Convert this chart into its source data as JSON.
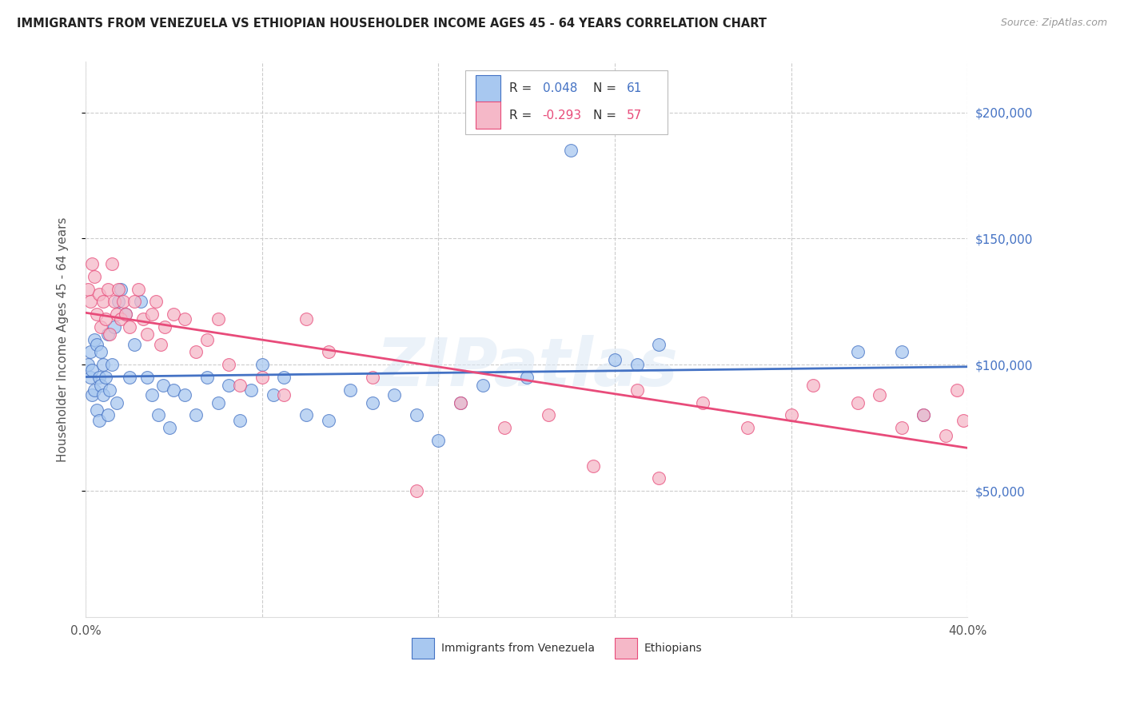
{
  "title": "IMMIGRANTS FROM VENEZUELA VS ETHIOPIAN HOUSEHOLDER INCOME AGES 45 - 64 YEARS CORRELATION CHART",
  "source": "Source: ZipAtlas.com",
  "ylabel": "Householder Income Ages 45 - 64 years",
  "xlim": [
    0.0,
    0.4
  ],
  "ylim": [
    0,
    220000
  ],
  "ytick_vals": [
    50000,
    100000,
    150000,
    200000
  ],
  "ytick_labels": [
    "$50,000",
    "$100,000",
    "$150,000",
    "$200,000"
  ],
  "xtick_vals": [
    0.0,
    0.08,
    0.16,
    0.24,
    0.32,
    0.4
  ],
  "xtick_labels": [
    "0.0%",
    "",
    "",
    "",
    "",
    "40.0%"
  ],
  "color_venezuela": "#a8c8f0",
  "color_ethiopia": "#f5b8c8",
  "color_line_venezuela": "#4472c4",
  "color_line_ethiopia": "#e84b7a",
  "background_color": "#ffffff",
  "grid_color": "#cccccc",
  "watermark": "ZIPatlas",
  "r_ven": "0.048",
  "n_ven": "61",
  "r_eth": "-0.293",
  "n_eth": "57",
  "legend_label_ven": "Immigrants from Venezuela",
  "legend_label_eth": "Ethiopians",
  "venezuela_x": [
    0.001,
    0.002,
    0.002,
    0.003,
    0.003,
    0.004,
    0.004,
    0.005,
    0.005,
    0.006,
    0.006,
    0.007,
    0.007,
    0.008,
    0.008,
    0.009,
    0.01,
    0.01,
    0.011,
    0.012,
    0.013,
    0.014,
    0.015,
    0.016,
    0.018,
    0.02,
    0.022,
    0.025,
    0.028,
    0.03,
    0.033,
    0.035,
    0.038,
    0.04,
    0.045,
    0.05,
    0.055,
    0.06,
    0.065,
    0.07,
    0.075,
    0.08,
    0.085,
    0.09,
    0.1,
    0.11,
    0.12,
    0.13,
    0.14,
    0.15,
    0.16,
    0.17,
    0.18,
    0.2,
    0.22,
    0.24,
    0.25,
    0.26,
    0.35,
    0.37,
    0.38
  ],
  "venezuela_y": [
    100000,
    105000,
    95000,
    98000,
    88000,
    110000,
    90000,
    82000,
    108000,
    95000,
    78000,
    105000,
    92000,
    88000,
    100000,
    95000,
    80000,
    112000,
    90000,
    100000,
    115000,
    85000,
    125000,
    130000,
    120000,
    95000,
    108000,
    125000,
    95000,
    88000,
    80000,
    92000,
    75000,
    90000,
    88000,
    80000,
    95000,
    85000,
    92000,
    78000,
    90000,
    100000,
    88000,
    95000,
    80000,
    78000,
    90000,
    85000,
    88000,
    80000,
    70000,
    85000,
    92000,
    95000,
    185000,
    102000,
    100000,
    108000,
    105000,
    105000,
    80000
  ],
  "ethiopia_x": [
    0.001,
    0.002,
    0.003,
    0.004,
    0.005,
    0.006,
    0.007,
    0.008,
    0.009,
    0.01,
    0.011,
    0.012,
    0.013,
    0.014,
    0.015,
    0.016,
    0.017,
    0.018,
    0.02,
    0.022,
    0.024,
    0.026,
    0.028,
    0.03,
    0.032,
    0.034,
    0.036,
    0.04,
    0.045,
    0.05,
    0.055,
    0.06,
    0.065,
    0.07,
    0.08,
    0.09,
    0.1,
    0.11,
    0.13,
    0.15,
    0.17,
    0.19,
    0.21,
    0.23,
    0.25,
    0.26,
    0.28,
    0.3,
    0.32,
    0.33,
    0.35,
    0.36,
    0.37,
    0.38,
    0.39,
    0.395,
    0.398
  ],
  "ethiopia_y": [
    130000,
    125000,
    140000,
    135000,
    120000,
    128000,
    115000,
    125000,
    118000,
    130000,
    112000,
    140000,
    125000,
    120000,
    130000,
    118000,
    125000,
    120000,
    115000,
    125000,
    130000,
    118000,
    112000,
    120000,
    125000,
    108000,
    115000,
    120000,
    118000,
    105000,
    110000,
    118000,
    100000,
    92000,
    95000,
    88000,
    118000,
    105000,
    95000,
    50000,
    85000,
    75000,
    80000,
    60000,
    90000,
    55000,
    85000,
    75000,
    80000,
    92000,
    85000,
    88000,
    75000,
    80000,
    72000,
    90000,
    78000
  ]
}
